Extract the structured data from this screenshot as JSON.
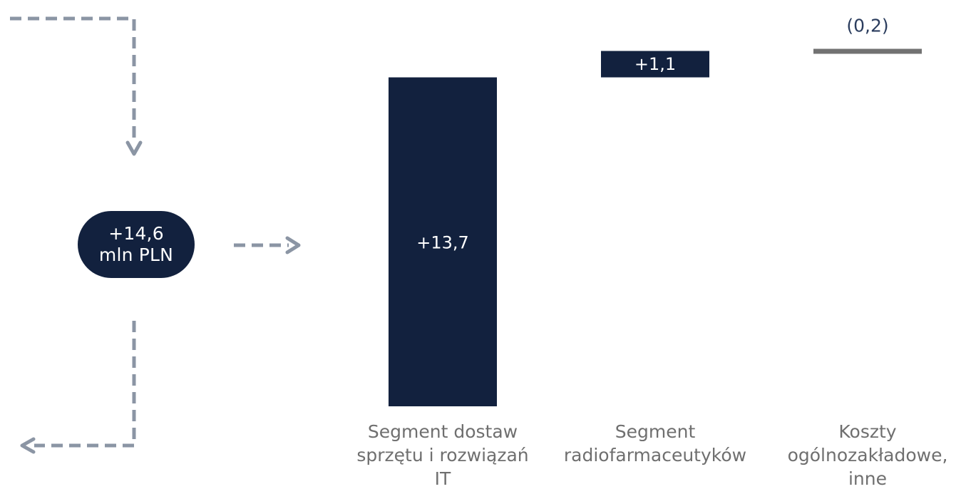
{
  "total": {
    "value_label": "+14,6",
    "unit_label": "mln PLN"
  },
  "colors": {
    "bar": "#12213e",
    "negative_bar": "#727272",
    "arrow": "#8b95a4",
    "label_text": "#6f6f6f",
    "top_text": "#2b3d5e",
    "pill_text": "#ffffff"
  },
  "chart_data": {
    "type": "bar",
    "subtype": "waterfall",
    "categories": [
      "Segment dostaw sprzętu i rozwiązań IT",
      "Segment radiofarmaceutyków",
      "Koszty ogólnozakładowe, inne"
    ],
    "category_label_lines": [
      [
        "Segment dostaw",
        "sprzętu i rozwiązań",
        "IT"
      ],
      [
        "Segment",
        "radiofarmaceutyków"
      ],
      [
        "Koszty",
        "ogólnozakładowe,",
        "inne"
      ]
    ],
    "values": [
      13.7,
      1.1,
      -0.2
    ],
    "data_labels": [
      "+13,7",
      "+1,1",
      "(0,2)"
    ],
    "ylim": [
      0,
      15.2
    ]
  }
}
